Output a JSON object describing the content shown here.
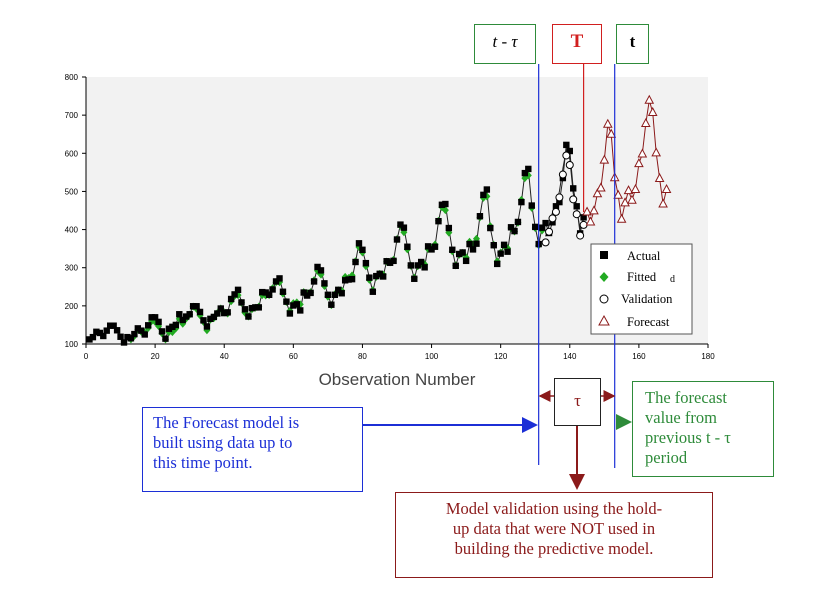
{
  "chart_data": {
    "type": "scatter",
    "title": "",
    "xlabel": "Observation Number",
    "ylabel": "",
    "xlim": [
      0,
      180
    ],
    "ylim": [
      100,
      800
    ],
    "x_ticks": [
      "0",
      "20",
      "40",
      "60",
      "80",
      "100",
      "120",
      "140",
      "160",
      "180"
    ],
    "y_ticks": [
      "100",
      "200",
      "300",
      "400",
      "500",
      "600",
      "700",
      "800"
    ],
    "grid": false,
    "legend_position": "bottom-right",
    "series": [
      {
        "name": "Actual",
        "marker": "filled-square",
        "color": "#000000",
        "x": [
          1,
          2,
          3,
          4,
          5,
          6,
          7,
          8,
          9,
          10,
          11,
          12,
          13,
          14,
          15,
          16,
          17,
          18,
          19,
          20,
          21,
          22,
          23,
          24,
          25,
          26,
          27,
          28,
          29,
          30,
          31,
          32,
          33,
          34,
          35,
          36,
          37,
          38,
          39,
          40,
          41,
          42,
          43,
          44,
          45,
          46,
          47,
          48,
          49,
          50,
          51,
          52,
          53,
          54,
          55,
          56,
          57,
          58,
          59,
          60,
          61,
          62,
          63,
          64,
          65,
          66,
          67,
          68,
          69,
          70,
          71,
          72,
          73,
          74,
          75,
          76,
          77,
          78,
          79,
          80,
          81,
          82,
          83,
          84,
          85,
          86,
          87,
          88,
          89,
          90,
          91,
          92,
          93,
          94,
          95,
          96,
          97,
          98,
          99,
          100,
          101,
          102,
          103,
          104,
          105,
          106,
          107,
          108,
          109,
          110,
          111,
          112,
          113,
          114,
          115,
          116,
          117,
          118,
          119,
          120,
          121,
          122,
          123,
          124,
          125,
          126,
          127,
          128,
          129,
          130,
          131,
          132,
          133,
          134,
          135,
          136,
          137,
          138,
          139,
          140,
          141,
          142,
          143,
          144
        ],
        "values": [
          112,
          118,
          132,
          129,
          121,
          135,
          148,
          148,
          136,
          119,
          104,
          118,
          115,
          126,
          141,
          135,
          125,
          149,
          170,
          170,
          158,
          133,
          114,
          140,
          145,
          150,
          178,
          163,
          172,
          178,
          199,
          199,
          184,
          162,
          146,
          166,
          171,
          180,
          193,
          181,
          183,
          218,
          230,
          242,
          209,
          191,
          172,
          194,
          196,
          196,
          236,
          235,
          229,
          243,
          264,
          272,
          237,
          211,
          180,
          201,
          204,
          188,
          235,
          227,
          234,
          264,
          302,
          293,
          259,
          229,
          203,
          229,
          242,
          233,
          267,
          269,
          270,
          315,
          364,
          347,
          312,
          274,
          237,
          278,
          284,
          277,
          317,
          313,
          318,
          374,
          413,
          405,
          355,
          306,
          271,
          306,
          315,
          301,
          356,
          348,
          355,
          422,
          465,
          467,
          404,
          347,
          305,
          336,
          340,
          318,
          362,
          348,
          363,
          435,
          491,
          505,
          404,
          359,
          310,
          337,
          360,
          342,
          406,
          396,
          420,
          472,
          548,
          559,
          463,
          407,
          362,
          405,
          417,
          391,
          419,
          461,
          472,
          535,
          622,
          606,
          508,
          461,
          390,
          432
        ]
      },
      {
        "name": "Fitted",
        "marker": "filled-diamond",
        "color": "#22aa22",
        "x": [
          13,
          14,
          15,
          16,
          17,
          18,
          19,
          20,
          21,
          22,
          23,
          24,
          25,
          26,
          27,
          28,
          29,
          30,
          31,
          32,
          33,
          34,
          35,
          36,
          37,
          38,
          39,
          40,
          41,
          42,
          43,
          44,
          45,
          46,
          47,
          48,
          49,
          50,
          51,
          52,
          53,
          54,
          55,
          56,
          57,
          58,
          59,
          60,
          61,
          62,
          63,
          64,
          65,
          66,
          67,
          68,
          69,
          70,
          71,
          72,
          73,
          74,
          75,
          76,
          77,
          78,
          79,
          80,
          81,
          82,
          83,
          84,
          85,
          86,
          87,
          88,
          89,
          90,
          91,
          92,
          93,
          94,
          95,
          96,
          97,
          98,
          99,
          100,
          101,
          102,
          103,
          104,
          105,
          106,
          107,
          108,
          109,
          110,
          111,
          112,
          113,
          114,
          115,
          116,
          117,
          118,
          119,
          120,
          121,
          122,
          123,
          124,
          125,
          126,
          127,
          128,
          129,
          130,
          131,
          132
        ],
        "values": [
          112,
          121,
          138,
          132,
          130,
          142,
          160,
          158,
          147,
          128,
          112,
          131,
          131,
          141,
          166,
          153,
          167,
          177,
          198,
          192,
          175,
          158,
          136,
          164,
          168,
          181,
          193,
          183,
          180,
          212,
          226,
          228,
          208,
          182,
          172,
          191,
          195,
          198,
          228,
          227,
          228,
          246,
          262,
          262,
          232,
          210,
          187,
          207,
          209,
          204,
          236,
          233,
          236,
          267,
          292,
          282,
          252,
          224,
          202,
          230,
          241,
          240,
          276,
          273,
          280,
          317,
          354,
          340,
          304,
          268,
          241,
          276,
          284,
          282,
          316,
          314,
          321,
          375,
          410,
          393,
          348,
          305,
          274,
          304,
          311,
          309,
          349,
          352,
          361,
          423,
          459,
          451,
          392,
          343,
          306,
          334,
          339,
          327,
          368,
          362,
          376,
          432,
          483,
          487,
          409,
          360,
          317,
          340,
          357,
          351,
          404,
          395,
          418,
          478,
          535,
          542,
          457,
          404,
          359,
          398
        ]
      },
      {
        "name": "Validation",
        "marker": "open-circle",
        "color": "#000000",
        "x": [
          133,
          134,
          135,
          136,
          137,
          138,
          139,
          140,
          141,
          142,
          143,
          144
        ],
        "values": [
          382,
          410,
          445,
          462,
          500,
          560,
          610,
          585,
          495,
          456,
          400,
          428
        ]
      },
      {
        "name": "Forecast",
        "marker": "open-triangle",
        "color": "#8b1a1a",
        "x": [
          145,
          146,
          147,
          148,
          149,
          150,
          151,
          152,
          153,
          154,
          155,
          156,
          157,
          158,
          159,
          160,
          161,
          162,
          163,
          164,
          165,
          166,
          167,
          168
        ],
        "values": [
          446,
          420,
          449,
          494,
          509,
          582,
          676,
          650,
          536,
          490,
          427,
          470,
          502,
          477,
          505,
          573,
          598,
          678,
          739,
          707,
          601,
          534,
          467,
          505
        ]
      }
    ]
  },
  "markers": {
    "t_minus_tau": {
      "label": "t - τ",
      "x": 131
    },
    "T": {
      "label": "T",
      "x": 144
    },
    "t": {
      "label": "t",
      "x": 153
    }
  },
  "annotations": {
    "model_built_lines": [
      "The Forecast model is",
      "built using data up to",
      "this time point."
    ],
    "forecast_value_lines": [
      "The forecast",
      "value from",
      "previous t - τ",
      "period"
    ],
    "validation_lines": [
      "Model validation using the hold-",
      "up data that were NOT used in",
      "building the predictive model."
    ],
    "tau_label": "τ"
  },
  "colors": {
    "blue": "#1c2fd6",
    "green": "#2e8b3a",
    "red": "#d11f1f",
    "darkred": "#8b1a1a",
    "plot_bg": "#f2f2f2",
    "fitted_green": "#22aa22"
  }
}
